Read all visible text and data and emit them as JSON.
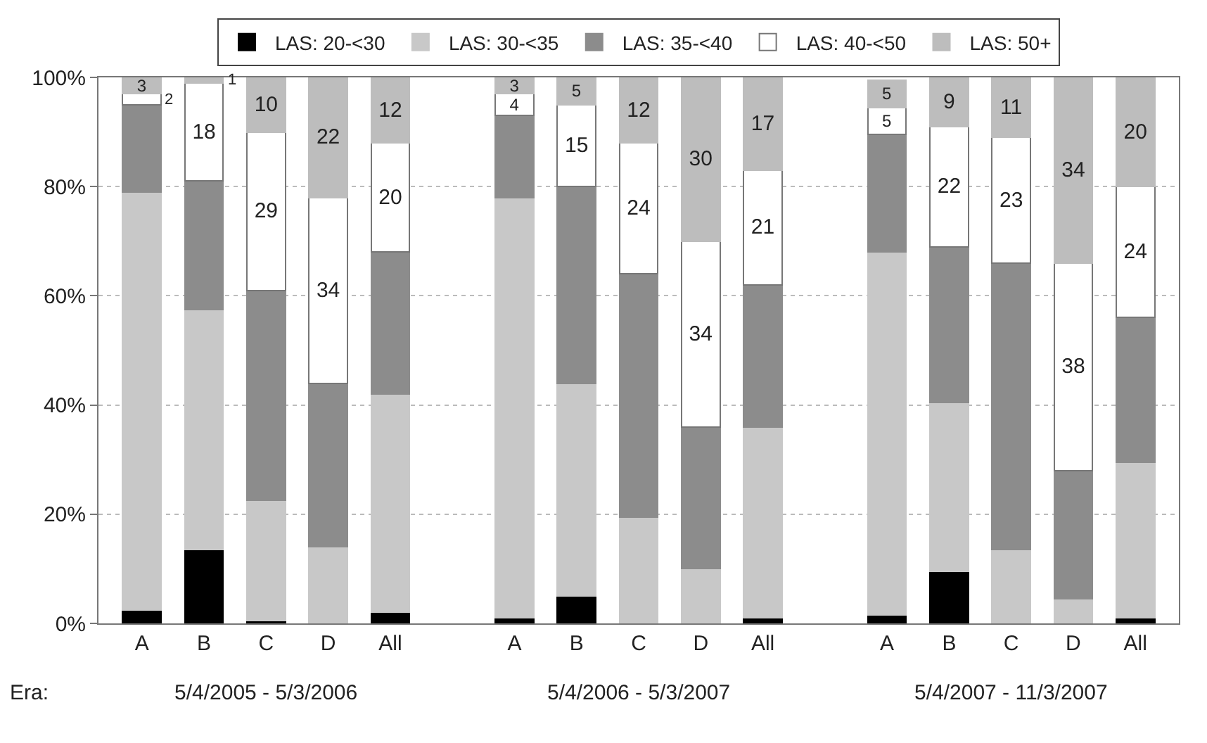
{
  "chart_data": {
    "type": "bar",
    "stacked": true,
    "categories": [
      "A",
      "B",
      "C",
      "D",
      "All",
      null,
      "A",
      "B",
      "C",
      "D",
      "All",
      null,
      "A",
      "B",
      "C",
      "D",
      "All"
    ],
    "series": [
      {
        "name": "LAS: 20-<30",
        "color": "#000000",
        "values": [
          2.5,
          13.5,
          0.5,
          0,
          2,
          null,
          1,
          5,
          0,
          0,
          1,
          null,
          1.5,
          9.5,
          0,
          0,
          1
        ]
      },
      {
        "name": "LAS: 30-<35",
        "color": "#c8c8c8",
        "values": [
          76.5,
          44,
          22,
          14,
          40,
          null,
          77,
          39,
          19.5,
          10,
          35,
          null,
          66.5,
          31,
          13.5,
          4.5,
          28.5
        ]
      },
      {
        "name": "LAS: 35-<40",
        "color": "#8c8c8c",
        "values": [
          16,
          23.5,
          38.5,
          30,
          26,
          null,
          15,
          36,
          44.5,
          26,
          26,
          null,
          21.5,
          28.5,
          52.5,
          23.5,
          26.5
        ]
      },
      {
        "name": "LAS: 40-<50",
        "color": "#ffffff",
        "values": [
          2,
          18,
          29,
          34,
          20,
          null,
          4,
          15,
          24,
          34,
          21,
          null,
          5,
          22,
          23,
          38,
          24
        ],
        "value_labels": [
          "2",
          "18",
          "29",
          "34",
          "20",
          null,
          "4",
          "15",
          "24",
          "34",
          "21",
          null,
          "5",
          "22",
          "23",
          "38",
          "24"
        ]
      },
      {
        "name": "LAS: 50+",
        "color": "#bdbdbd",
        "values": [
          3,
          1,
          10,
          22,
          12,
          null,
          3,
          5,
          12,
          30,
          17,
          null,
          5,
          9,
          11,
          34,
          20
        ],
        "value_labels": [
          "3",
          "1",
          "10",
          "22",
          "12",
          null,
          "3",
          "5",
          "12",
          "30",
          "17",
          null,
          "5",
          "9",
          "11",
          "34",
          "20"
        ]
      }
    ],
    "ylim": [
      0,
      100
    ],
    "yticks": [
      {
        "value": 0,
        "label": "0%"
      },
      {
        "value": 20,
        "label": "20%"
      },
      {
        "value": 40,
        "label": "40%"
      },
      {
        "value": 60,
        "label": "60%"
      },
      {
        "value": 80,
        "label": "80%"
      },
      {
        "value": 100,
        "label": "100%"
      }
    ],
    "grid": "y",
    "legend": "top",
    "annotations": [
      "Era:",
      "5/4/2005 - 5/3/2006",
      "5/4/2006 - 5/3/2007",
      "5/4/2007 - 11/3/2007"
    ]
  }
}
